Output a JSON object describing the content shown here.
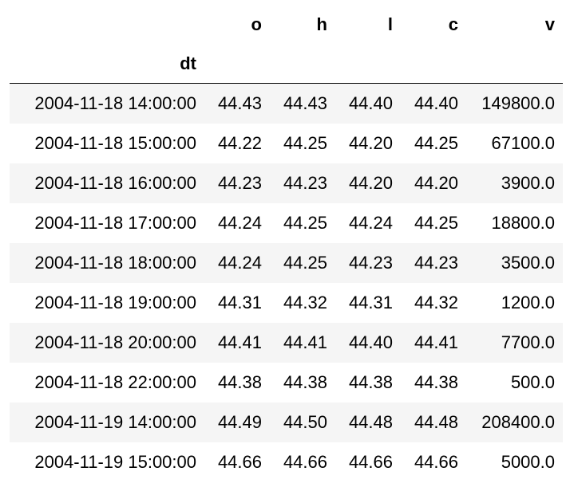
{
  "table": {
    "index_name": "dt",
    "columns": [
      "o",
      "h",
      "l",
      "c",
      "v"
    ],
    "rows": [
      {
        "dt": "2004-11-18 14:00:00",
        "o": "44.43",
        "h": "44.43",
        "l": "44.40",
        "c": "44.40",
        "v": "149800.0"
      },
      {
        "dt": "2004-11-18 15:00:00",
        "o": "44.22",
        "h": "44.25",
        "l": "44.20",
        "c": "44.25",
        "v": "67100.0"
      },
      {
        "dt": "2004-11-18 16:00:00",
        "o": "44.23",
        "h": "44.23",
        "l": "44.20",
        "c": "44.20",
        "v": "3900.0"
      },
      {
        "dt": "2004-11-18 17:00:00",
        "o": "44.24",
        "h": "44.25",
        "l": "44.24",
        "c": "44.25",
        "v": "18800.0"
      },
      {
        "dt": "2004-11-18 18:00:00",
        "o": "44.24",
        "h": "44.25",
        "l": "44.23",
        "c": "44.23",
        "v": "3500.0"
      },
      {
        "dt": "2004-11-18 19:00:00",
        "o": "44.31",
        "h": "44.32",
        "l": "44.31",
        "c": "44.32",
        "v": "1200.0"
      },
      {
        "dt": "2004-11-18 20:00:00",
        "o": "44.41",
        "h": "44.41",
        "l": "44.40",
        "c": "44.41",
        "v": "7700.0"
      },
      {
        "dt": "2004-11-18 22:00:00",
        "o": "44.38",
        "h": "44.38",
        "l": "44.38",
        "c": "44.38",
        "v": "500.0"
      },
      {
        "dt": "2004-11-19 14:00:00",
        "o": "44.49",
        "h": "44.50",
        "l": "44.48",
        "c": "44.48",
        "v": "208400.0"
      },
      {
        "dt": "2004-11-19 15:00:00",
        "o": "44.66",
        "h": "44.66",
        "l": "44.66",
        "c": "44.66",
        "v": "5000.0"
      }
    ]
  },
  "colors": {
    "stripe": "#f5f5f5",
    "background": "#ffffff",
    "text": "#000000",
    "header_rule": "#000000"
  }
}
